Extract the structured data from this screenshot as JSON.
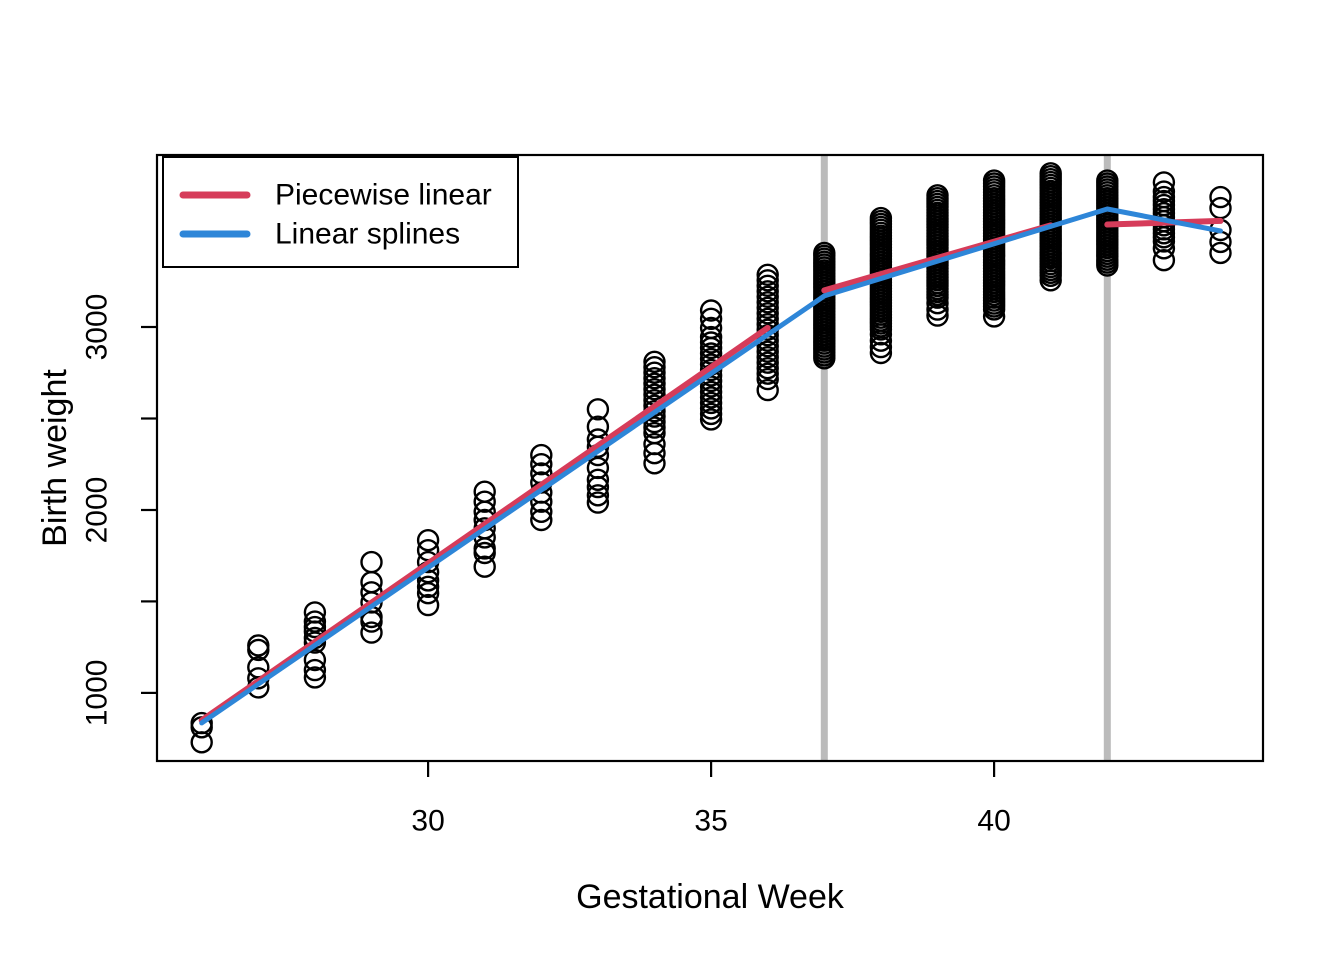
{
  "chart_data": {
    "type": "scatter",
    "title": "",
    "xlabel": "Gestational Week",
    "ylabel": "Birth weight",
    "x_ticks": [
      30,
      35,
      40
    ],
    "y_ticks_labeled": [
      1000,
      2000,
      3000
    ],
    "y_ticks_minor": [
      1500,
      2500
    ],
    "xlim": [
      25.21,
      44.75
    ],
    "ylim": [
      628,
      3940
    ],
    "grid": false,
    "background": "#ffffff",
    "axis_color": "#000000",
    "point_color": "#000000",
    "knot_lines": {
      "x": [
        37,
        42
      ],
      "color": "#BBBBBB"
    },
    "legend": {
      "position": "topleft",
      "items": [
        {
          "label": "Piecewise linear",
          "color": "#D63C5A"
        },
        {
          "label": "Linear splines",
          "color": "#2E86D8"
        }
      ]
    },
    "series": [
      {
        "name": "Piecewise linear",
        "style": "segments",
        "color": "#D63C5A",
        "segments": [
          [
            [
              26,
              850
            ],
            [
              36,
              2995
            ]
          ],
          [
            [
              37,
              3200
            ],
            [
              41,
              3555
            ]
          ],
          [
            [
              42,
              3560
            ],
            [
              44,
              3580
            ]
          ]
        ]
      },
      {
        "name": "Linear splines",
        "style": "polyline",
        "color": "#2E86D8",
        "points": [
          [
            26,
            836
          ],
          [
            37,
            3170
          ],
          [
            42,
            3645
          ],
          [
            44,
            3525
          ]
        ]
      }
    ],
    "scatter": [
      {
        "week": 26,
        "weights": [
          835,
          812,
          730
        ]
      },
      {
        "week": 27,
        "weights": [
          1260,
          1235,
          1140,
          1080,
          1030
        ]
      },
      {
        "week": 28,
        "weights": [
          1440,
          1390,
          1360,
          1335,
          1300,
          1275,
          1180,
          1125,
          1085
        ]
      },
      {
        "week": 29,
        "weights": [
          1715,
          1605,
          1550,
          1495,
          1415,
          1390,
          1330
        ]
      },
      {
        "week": 30,
        "weights": [
          1835,
          1780,
          1715,
          1660,
          1615,
          1580,
          1545,
          1480
        ]
      },
      {
        "week": 31,
        "weights": [
          2100,
          2045,
          1990,
          1945,
          1900,
          1850,
          1790,
          1765,
          1690
        ]
      },
      {
        "week": 32,
        "weights": [
          2300,
          2250,
          2200,
          2150,
          2095,
          2045,
          1990,
          1945
        ]
      },
      {
        "week": 33,
        "weights": [
          2550,
          2455,
          2385,
          2345,
          2300,
          2230,
          2165,
          2125,
          2080,
          2040
        ]
      },
      {
        "week": 34,
        "weights": [
          2810,
          2780,
          2750,
          2720,
          2690,
          2660,
          2630,
          2600,
          2570,
          2540,
          2510,
          2480,
          2450,
          2420,
          2360,
          2310,
          2255
        ]
      },
      {
        "week": 35,
        "weights": [
          3090,
          3045,
          2995,
          2945,
          2915,
          2885,
          2855,
          2825,
          2795,
          2765,
          2735,
          2705,
          2675,
          2645,
          2615,
          2585,
          2555,
          2525,
          2495
        ]
      },
      {
        "week": 36,
        "weights": [
          3285,
          3255,
          3225,
          3195,
          3165,
          3135,
          3105,
          3075,
          3045,
          3015,
          2985,
          2955,
          2925,
          2895,
          2865,
          2835,
          2805,
          2775,
          2745,
          2715,
          2655
        ]
      },
      {
        "week": 37,
        "weights": [
          3405,
          3389,
          3373,
          3357,
          3341,
          3325,
          3309,
          3293,
          3277,
          3261,
          3245,
          3229,
          3213,
          3197,
          3181,
          3165,
          3149,
          3133,
          3117,
          3101,
          3085,
          3069,
          3053,
          3037,
          3021,
          3005,
          2989,
          2973,
          2957,
          2941,
          2925,
          2909,
          2893,
          2877,
          2861,
          2845,
          2829
        ]
      },
      {
        "week": 38,
        "weights": [
          3595,
          3579,
          3563,
          3547,
          3531,
          3515,
          3499,
          3483,
          3467,
          3451,
          3435,
          3419,
          3403,
          3387,
          3371,
          3355,
          3339,
          3323,
          3307,
          3291,
          3275,
          3259,
          3243,
          3227,
          3211,
          3195,
          3179,
          3163,
          3147,
          3131,
          3115,
          3099,
          3083,
          3067,
          3051,
          3035,
          3019,
          3003,
          2987,
          2960,
          2925,
          2890,
          2858
        ]
      },
      {
        "week": 39,
        "weights": [
          3720,
          3704,
          3688,
          3672,
          3656,
          3640,
          3624,
          3608,
          3592,
          3576,
          3560,
          3544,
          3528,
          3512,
          3496,
          3480,
          3464,
          3448,
          3432,
          3416,
          3400,
          3384,
          3368,
          3352,
          3336,
          3320,
          3304,
          3288,
          3272,
          3256,
          3240,
          3224,
          3208,
          3192,
          3176,
          3160,
          3130,
          3095,
          3062
        ]
      },
      {
        "week": 40,
        "weights": [
          3800,
          3784,
          3768,
          3752,
          3736,
          3720,
          3704,
          3688,
          3672,
          3656,
          3640,
          3624,
          3608,
          3592,
          3576,
          3560,
          3544,
          3528,
          3512,
          3496,
          3480,
          3464,
          3448,
          3432,
          3416,
          3400,
          3384,
          3368,
          3352,
          3336,
          3320,
          3304,
          3288,
          3272,
          3256,
          3240,
          3224,
          3208,
          3192,
          3176,
          3160,
          3144,
          3128,
          3112,
          3096,
          3058
        ]
      },
      {
        "week": 41,
        "weights": [
          3840,
          3824,
          3808,
          3792,
          3776,
          3760,
          3744,
          3728,
          3712,
          3696,
          3680,
          3664,
          3648,
          3632,
          3616,
          3600,
          3584,
          3568,
          3552,
          3536,
          3520,
          3504,
          3488,
          3472,
          3456,
          3440,
          3424,
          3408,
          3392,
          3376,
          3360,
          3344,
          3328,
          3312,
          3296,
          3280,
          3255
        ]
      },
      {
        "week": 42,
        "weights": [
          3800,
          3784,
          3768,
          3752,
          3736,
          3720,
          3704,
          3688,
          3672,
          3656,
          3640,
          3624,
          3608,
          3592,
          3576,
          3560,
          3544,
          3528,
          3512,
          3496,
          3480,
          3464,
          3448,
          3432,
          3416,
          3400,
          3384,
          3368,
          3352,
          3336
        ]
      },
      {
        "week": 43,
        "weights": [
          3790,
          3740,
          3710,
          3688,
          3666,
          3644,
          3622,
          3600,
          3578,
          3556,
          3534,
          3512,
          3490,
          3468,
          3430,
          3365
        ]
      },
      {
        "week": 44,
        "weights": [
          3710,
          3650,
          3530,
          3465,
          3405
        ]
      }
    ]
  }
}
